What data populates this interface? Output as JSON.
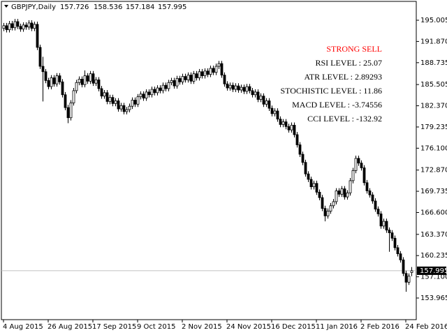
{
  "chart_data": {
    "type": "candlestick",
    "title": "GBPJPY,Daily",
    "bull_color": "#ffffff",
    "bear_color": "#000000",
    "edge_color": "#000000",
    "last_price_line_color": "#c0c0c0",
    "annotations": [
      {
        "text": "STRONG SELL",
        "color": "#ff0000"
      },
      {
        "text": "RSI LEVEL : 25.07",
        "color": "#000000"
      },
      {
        "text": "ATR LEVEL : 2.89293",
        "color": "#000000"
      },
      {
        "text": "STOCHISTIC LEVEL : 11.86",
        "color": "#000000"
      },
      {
        "text": "MACD LEVEL : -3.74556",
        "color": "#000000"
      },
      {
        "text": "CCI LEVEL : -132.92",
        "color": "#000000"
      }
    ],
    "ylim": [
      150.77,
      197.79
    ],
    "yticks": [
      195.005,
      {
        "value": 191.87,
        "label": "191.870"
      },
      188.735,
      185.505,
      {
        "value": 182.37,
        "label": "182.370"
      },
      179.235,
      {
        "value": 176.1,
        "label": "176.100"
      },
      {
        "value": 172.87,
        "label": "172.870"
      },
      169.735,
      {
        "value": 166.6,
        "label": "166.600"
      },
      {
        "value": 163.37,
        "label": "163.370"
      },
      160.235,
      {
        "value": 157.1,
        "label": "157.100"
      },
      153.965
    ],
    "categories": [
      "4 Aug 2015",
      null,
      null,
      null,
      null,
      null,
      null,
      null,
      null,
      null,
      null,
      null,
      null,
      null,
      null,
      null,
      "26 Aug 2015",
      null,
      null,
      null,
      null,
      null,
      null,
      null,
      null,
      null,
      null,
      null,
      null,
      null,
      null,
      null,
      "17 Sep 2015",
      null,
      null,
      null,
      null,
      null,
      null,
      null,
      null,
      null,
      null,
      null,
      null,
      null,
      null,
      null,
      "9 Oct 2015",
      null,
      null,
      null,
      null,
      null,
      null,
      null,
      null,
      null,
      null,
      null,
      null,
      null,
      null,
      null,
      "2 Nov 2015",
      null,
      null,
      null,
      null,
      null,
      null,
      null,
      null,
      null,
      null,
      null,
      null,
      null,
      null,
      null,
      "24 Nov 2015",
      null,
      null,
      null,
      null,
      null,
      null,
      null,
      null,
      null,
      null,
      null,
      null,
      null,
      null,
      null,
      "16 Dec 2015",
      null,
      null,
      null,
      null,
      null,
      null,
      null,
      null,
      null,
      null,
      null,
      null,
      null,
      null,
      null,
      "11 Jan 2016",
      null,
      null,
      null,
      null,
      null,
      null,
      null,
      null,
      null,
      null,
      null,
      null,
      null,
      null,
      null,
      "2 Feb 2016",
      null,
      null,
      null,
      null,
      null,
      null,
      null,
      null,
      null,
      null,
      null,
      null,
      null,
      null,
      null,
      "24 Feb 2016",
      null,
      null
    ],
    "candles": [
      [
        193.8,
        194.6,
        193.4,
        194.2
      ],
      [
        194.2,
        194.6,
        193.2,
        193.6
      ],
      [
        193.6,
        194.9,
        193.2,
        194.5
      ],
      [
        194.5,
        194.9,
        193.5,
        193.9
      ],
      [
        193.9,
        195.2,
        193.5,
        194.8
      ],
      [
        194.8,
        195.2,
        193.7,
        194.1
      ],
      [
        194.1,
        194.5,
        193.3,
        193.7
      ],
      [
        193.7,
        194.7,
        193.3,
        194.3
      ],
      [
        194.3,
        194.7,
        193.6,
        194.0
      ],
      [
        194.0,
        195.0,
        193.6,
        194.6
      ],
      [
        194.6,
        195.0,
        193.4,
        193.8
      ],
      [
        193.8,
        194.8,
        193.4,
        194.4
      ],
      [
        194.4,
        194.8,
        190.6,
        191.0
      ],
      [
        191.0,
        191.4,
        187.8,
        188.2
      ],
      [
        188.2,
        189.6,
        183.0,
        187.4
      ],
      [
        187.4,
        187.8,
        185.7,
        186.1
      ],
      [
        186.1,
        186.5,
        184.8,
        185.2
      ],
      [
        185.2,
        186.9,
        184.8,
        186.5
      ],
      [
        186.5,
        186.9,
        185.2,
        185.6
      ],
      [
        185.6,
        187.2,
        185.2,
        186.8
      ],
      [
        186.8,
        187.2,
        185.5,
        185.9
      ],
      [
        185.9,
        186.3,
        183.6,
        184.0
      ],
      [
        184.0,
        184.4,
        181.7,
        182.1
      ],
      [
        182.1,
        182.5,
        179.8,
        180.6
      ],
      [
        180.6,
        183.2,
        180.2,
        182.8
      ],
      [
        182.8,
        185.0,
        182.4,
        184.6
      ],
      [
        184.6,
        186.2,
        184.2,
        185.8
      ],
      [
        185.8,
        186.7,
        185.4,
        186.3
      ],
      [
        186.3,
        186.7,
        185.1,
        185.5
      ],
      [
        185.5,
        187.6,
        185.1,
        186.8
      ],
      [
        186.8,
        187.2,
        185.6,
        186.0
      ],
      [
        186.0,
        187.5,
        185.6,
        187.1
      ],
      [
        187.1,
        187.5,
        185.3,
        185.7
      ],
      [
        185.7,
        186.6,
        185.3,
        186.2
      ],
      [
        186.2,
        186.6,
        184.5,
        184.9
      ],
      [
        184.9,
        185.3,
        183.4,
        183.8
      ],
      [
        183.8,
        184.7,
        183.4,
        184.3
      ],
      [
        184.3,
        184.7,
        182.6,
        183.0
      ],
      [
        183.0,
        184.0,
        182.6,
        183.6
      ],
      [
        183.6,
        184.0,
        182.3,
        182.7
      ],
      [
        182.7,
        183.5,
        182.3,
        183.1
      ],
      [
        183.1,
        183.5,
        181.5,
        181.9
      ],
      [
        181.9,
        182.8,
        181.5,
        182.4
      ],
      [
        182.4,
        182.8,
        181.1,
        181.5
      ],
      [
        181.5,
        182.2,
        181.1,
        181.8
      ],
      [
        181.8,
        182.7,
        181.4,
        182.3
      ],
      [
        182.3,
        183.6,
        181.9,
        183.2
      ],
      [
        183.2,
        183.6,
        182.2,
        182.6
      ],
      [
        182.6,
        184.1,
        182.2,
        183.7
      ],
      [
        183.7,
        184.5,
        183.3,
        184.1
      ],
      [
        184.1,
        184.5,
        183.1,
        183.5
      ],
      [
        183.5,
        184.8,
        183.1,
        184.4
      ],
      [
        184.4,
        184.8,
        183.6,
        184.0
      ],
      [
        184.0,
        185.2,
        183.6,
        184.8
      ],
      [
        184.8,
        185.2,
        183.9,
        184.3
      ],
      [
        184.3,
        185.4,
        183.9,
        185.0
      ],
      [
        185.0,
        185.4,
        184.2,
        184.6
      ],
      [
        184.6,
        185.8,
        184.2,
        185.4
      ],
      [
        185.4,
        185.8,
        184.5,
        184.9
      ],
      [
        184.9,
        186.2,
        184.5,
        185.8
      ],
      [
        185.8,
        186.5,
        185.4,
        186.1
      ],
      [
        186.1,
        186.5,
        184.9,
        185.3
      ],
      [
        185.3,
        186.8,
        184.9,
        186.4
      ],
      [
        186.4,
        186.8,
        185.5,
        185.9
      ],
      [
        185.9,
        187.1,
        185.5,
        186.7
      ],
      [
        186.7,
        187.1,
        185.8,
        186.2
      ],
      [
        186.2,
        187.3,
        185.8,
        186.9
      ],
      [
        186.9,
        187.3,
        185.6,
        186.0
      ],
      [
        186.0,
        187.5,
        185.6,
        187.1
      ],
      [
        187.1,
        187.5,
        186.1,
        186.5
      ],
      [
        186.5,
        187.8,
        186.1,
        187.4
      ],
      [
        187.4,
        187.8,
        186.4,
        186.8
      ],
      [
        186.8,
        187.9,
        186.4,
        187.5
      ],
      [
        187.5,
        187.9,
        186.6,
        187.0
      ],
      [
        187.0,
        188.3,
        186.6,
        187.9
      ],
      [
        187.9,
        188.3,
        186.9,
        187.3
      ],
      [
        187.3,
        188.6,
        186.9,
        188.2
      ],
      [
        188.2,
        189.0,
        187.8,
        188.6
      ],
      [
        188.6,
        189.0,
        186.5,
        186.9
      ],
      [
        186.9,
        187.3,
        185.2,
        185.6
      ],
      [
        185.6,
        186.0,
        184.6,
        185.0
      ],
      [
        185.0,
        185.8,
        184.6,
        185.4
      ],
      [
        185.4,
        185.8,
        184.4,
        184.8
      ],
      [
        184.8,
        185.7,
        184.4,
        185.3
      ],
      [
        185.3,
        185.7,
        184.3,
        184.7
      ],
      [
        184.7,
        185.5,
        184.3,
        185.1
      ],
      [
        185.1,
        185.5,
        184.1,
        184.5
      ],
      [
        184.5,
        185.6,
        184.1,
        185.2
      ],
      [
        185.2,
        185.6,
        184.2,
        184.6
      ],
      [
        184.6,
        185.0,
        183.6,
        184.0
      ],
      [
        184.0,
        184.8,
        183.6,
        184.4
      ],
      [
        184.4,
        184.8,
        182.9,
        183.3
      ],
      [
        183.3,
        184.2,
        182.9,
        183.8
      ],
      [
        183.8,
        184.2,
        182.2,
        182.6
      ],
      [
        182.6,
        183.5,
        182.2,
        183.1
      ],
      [
        183.1,
        183.5,
        181.6,
        182.0
      ],
      [
        182.0,
        182.4,
        180.8,
        181.2
      ],
      [
        181.2,
        182.0,
        180.8,
        181.6
      ],
      [
        181.6,
        182.0,
        180.0,
        180.4
      ],
      [
        180.4,
        180.8,
        179.2,
        179.6
      ],
      [
        179.6,
        180.4,
        179.2,
        180.0
      ],
      [
        180.0,
        180.4,
        178.9,
        179.3
      ],
      [
        179.3,
        179.7,
        178.4,
        178.8
      ],
      [
        178.8,
        179.9,
        178.4,
        179.5
      ],
      [
        179.5,
        179.9,
        177.7,
        178.1
      ],
      [
        178.1,
        178.5,
        176.2,
        176.6
      ],
      [
        176.6,
        177.0,
        174.8,
        175.2
      ],
      [
        175.2,
        175.6,
        173.6,
        174.0
      ],
      [
        174.0,
        174.4,
        171.9,
        172.3
      ],
      [
        172.3,
        172.7,
        171.1,
        171.5
      ],
      [
        171.5,
        171.9,
        170.0,
        170.4
      ],
      [
        170.4,
        171.3,
        170.0,
        170.9
      ],
      [
        170.9,
        171.3,
        169.2,
        169.6
      ],
      [
        169.6,
        170.0,
        168.4,
        168.8
      ],
      [
        168.8,
        169.2,
        166.8,
        167.2
      ],
      [
        167.2,
        167.6,
        165.3,
        166.1
      ],
      [
        166.1,
        167.2,
        165.7,
        166.8
      ],
      [
        166.8,
        168.0,
        166.4,
        167.6
      ],
      [
        167.6,
        168.6,
        167.2,
        168.2
      ],
      [
        168.2,
        170.2,
        167.8,
        169.8
      ],
      [
        169.8,
        170.2,
        168.9,
        169.3
      ],
      [
        169.3,
        170.5,
        168.9,
        170.1
      ],
      [
        170.1,
        170.5,
        168.5,
        168.9
      ],
      [
        168.9,
        169.9,
        168.5,
        169.5
      ],
      [
        169.5,
        171.7,
        169.1,
        171.3
      ],
      [
        171.3,
        173.2,
        170.9,
        172.8
      ],
      [
        172.8,
        175.0,
        172.4,
        174.6
      ],
      [
        174.6,
        175.0,
        173.5,
        173.9
      ],
      [
        173.9,
        174.3,
        172.8,
        173.2
      ],
      [
        173.2,
        173.6,
        170.6,
        171.0
      ],
      [
        171.0,
        171.4,
        169.4,
        169.8
      ],
      [
        169.8,
        170.2,
        168.8,
        169.2
      ],
      [
        169.2,
        169.6,
        167.9,
        168.3
      ],
      [
        168.3,
        168.7,
        166.7,
        167.1
      ],
      [
        167.1,
        167.5,
        166.0,
        166.4
      ],
      [
        166.4,
        166.8,
        164.2,
        164.6
      ],
      [
        164.6,
        165.7,
        164.2,
        165.3
      ],
      [
        165.3,
        165.7,
        163.6,
        164.0
      ],
      [
        164.0,
        164.4,
        160.8,
        163.6
      ],
      [
        163.6,
        164.0,
        162.4,
        162.8
      ],
      [
        162.8,
        163.2,
        161.0,
        161.4
      ],
      [
        161.4,
        161.8,
        160.1,
        160.5
      ],
      [
        160.5,
        160.9,
        159.2,
        159.6
      ],
      [
        159.6,
        160.0,
        157.2,
        157.6
      ],
      [
        157.6,
        158.0,
        154.9,
        156.3
      ],
      [
        156.3,
        157.6,
        155.9,
        157.2
      ],
      [
        157.726,
        158.536,
        157.184,
        157.995
      ]
    ]
  }
}
